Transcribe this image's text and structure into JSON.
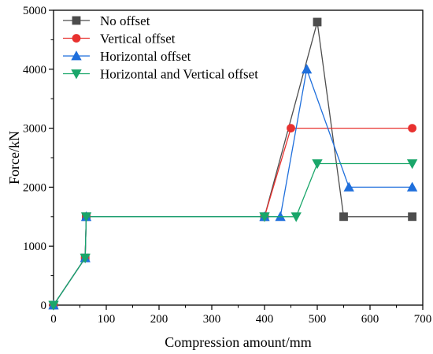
{
  "chart_data": {
    "type": "line",
    "title": "",
    "xlabel": "Compression amount/mm",
    "ylabel": "Force/kN",
    "xlim": [
      0,
      700
    ],
    "ylim": [
      0,
      5000
    ],
    "xticks": [
      0,
      100,
      200,
      300,
      400,
      500,
      600,
      700
    ],
    "yticks": [
      0,
      1000,
      2000,
      3000,
      4000,
      5000
    ],
    "grid": false,
    "legend_position": "top-left",
    "series": [
      {
        "name": "No offset",
        "color": "#4d4d4d",
        "marker": "square",
        "x": [
          0,
          60,
          62,
          400,
          500,
          550,
          680
        ],
        "y": [
          0,
          800,
          1500,
          1500,
          4800,
          1500,
          1500
        ]
      },
      {
        "name": "Vertical offset",
        "color": "#e8312f",
        "marker": "circle",
        "x": [
          0,
          60,
          62,
          400,
          450,
          680
        ],
        "y": [
          0,
          800,
          1500,
          1500,
          3000,
          3000
        ]
      },
      {
        "name": "Horizontal offset",
        "color": "#1f6fdc",
        "marker": "triangle-up",
        "x": [
          0,
          60,
          62,
          400,
          430,
          480,
          560,
          680
        ],
        "y": [
          0,
          800,
          1500,
          1500,
          1500,
          4000,
          2000,
          2000
        ]
      },
      {
        "name": "Horizontal and Vertical offset",
        "color": "#1aa66a",
        "marker": "triangle-down",
        "x": [
          0,
          60,
          62,
          400,
          460,
          500,
          680
        ],
        "y": [
          0,
          800,
          1500,
          1500,
          1500,
          2400,
          2400
        ]
      }
    ]
  }
}
